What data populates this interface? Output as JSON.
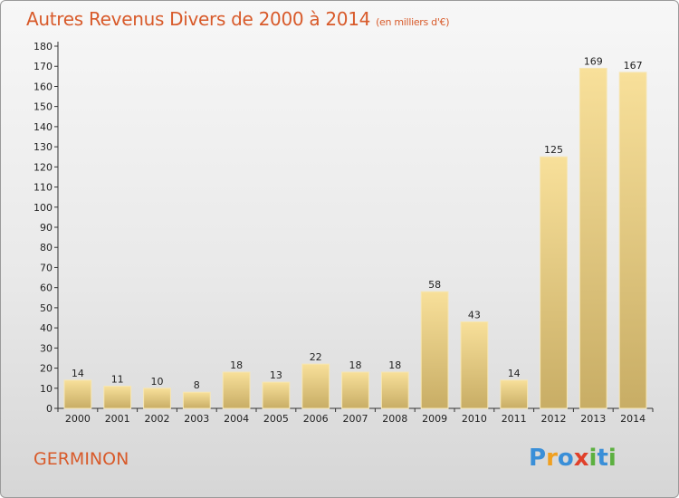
{
  "header": {
    "title": "Autres Revenus Divers de 2000 à 2014",
    "subtitle": "(en milliers d'€)"
  },
  "footer": {
    "commune": "GERMINON",
    "logo": {
      "letters": [
        "P",
        "r",
        "o",
        "x",
        "i",
        "t",
        "i"
      ],
      "colors": [
        "#3a8fd8",
        "#f0a020",
        "#3a8fd8",
        "#e0402a",
        "#5cb040",
        "#3a8fd8",
        "#5cb040"
      ]
    }
  },
  "colors": {
    "title": "#d85a2a",
    "bar_light": "#f7df98",
    "bar_dark": "#c9ae66"
  },
  "chart_data": {
    "type": "bar",
    "title": "Autres Revenus Divers de 2000 à 2014",
    "subtitle": "(en milliers d'€)",
    "xlabel": "",
    "ylabel": "",
    "categories": [
      "2000",
      "2001",
      "2002",
      "2003",
      "2004",
      "2005",
      "2006",
      "2007",
      "2008",
      "2009",
      "2010",
      "2011",
      "2012",
      "2013",
      "2014"
    ],
    "values": [
      14,
      11,
      10,
      8,
      18,
      13,
      22,
      18,
      18,
      58,
      43,
      14,
      125,
      169,
      167
    ],
    "ylim": [
      0,
      180
    ],
    "yticks": [
      0,
      10,
      20,
      30,
      40,
      50,
      60,
      70,
      80,
      90,
      100,
      110,
      120,
      130,
      140,
      150,
      160,
      170,
      180
    ],
    "grid": false,
    "data_labels": true
  }
}
